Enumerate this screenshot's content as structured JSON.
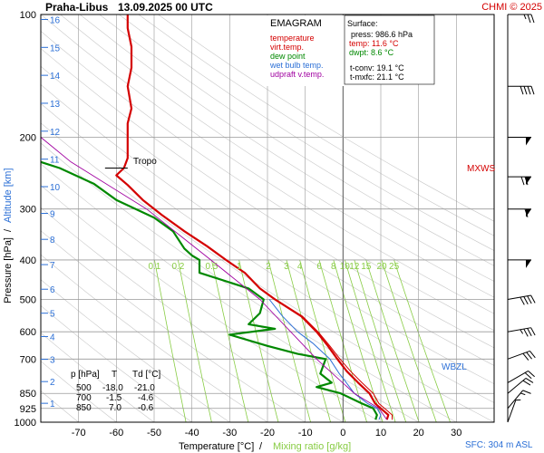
{
  "header": {
    "station": "Praha-Libus",
    "datetime": "13.09.2025 00 UTC",
    "credit": "CHMI © 2025"
  },
  "legend": {
    "title": "EMAGRAM",
    "items": [
      {
        "label": "temperature",
        "color": "#d40000"
      },
      {
        "label": "virt.temp.",
        "color": "#d40000"
      },
      {
        "label": "dew point",
        "color": "#008800"
      },
      {
        "label": "wet bulb temp.",
        "color": "#2b6fd6"
      },
      {
        "label": "udpraft v.temp.",
        "color": "#a000a0"
      }
    ]
  },
  "surface": {
    "title": "Surface:",
    "press": "press: 986.6 hPa",
    "temp": "temp: 11.6 °C",
    "dwpt": "dwpt: 8.6 °C",
    "tconv": "t-conv: 19.1 °C",
    "tmxfc": "t-mxfc: 21.1 °C"
  },
  "table": {
    "headers": [
      "p [hPa]",
      "T",
      "Td [°C]"
    ],
    "rows": [
      [
        "500",
        "-18.0",
        "-21.0"
      ],
      [
        "700",
        "-1.5",
        "-4.6"
      ],
      [
        "850",
        "7.0",
        "-0.6"
      ]
    ]
  },
  "axes": {
    "y_label_pressure": "Pressure [hPa]",
    "y_label_sep": "/",
    "y_label_alt": "Altitude [km]",
    "x_label_temp": "Temperature [°C]",
    "x_label_sep": "/",
    "x_label_mix": "Mixing ratio [g/kg]",
    "sfc_label": "SFC: 304 m ASL",
    "tropo_label": "Tropo",
    "mxws_label": "MXWS",
    "wbzl_label": "WBZL"
  },
  "colors": {
    "temperature": "#d40000",
    "dewpoint": "#008800",
    "wetbulb": "#2b6fd6",
    "updraft": "#a000a0",
    "mixing": "#88cc44",
    "altitude": "#2b6fd6",
    "grid": "#999999"
  },
  "chart_data": {
    "type": "line",
    "title": "EMAGRAM",
    "xlabel": "Temperature [°C] / Mixing ratio [g/kg]",
    "ylabel": "Pressure [hPa] / Altitude [km]",
    "xlim": [
      -80,
      40
    ],
    "ylim": [
      1000,
      100
    ],
    "y_scale": "log",
    "x_ticks": [
      -70,
      -60,
      -50,
      -40,
      -30,
      -20,
      -10,
      0,
      10,
      20,
      30
    ],
    "pressure_ticks": [
      100,
      200,
      300,
      400,
      500,
      600,
      700,
      850,
      925,
      1000
    ],
    "altitude_ticks_km": [
      1,
      2,
      3,
      4,
      5,
      6,
      7,
      8,
      9,
      10,
      11,
      12,
      13,
      14,
      15,
      16
    ],
    "mixing_ratio_labels": [
      "0.1",
      "0.2",
      "0.5",
      "1",
      "2",
      "3",
      "4",
      "6",
      "8",
      "10",
      "12",
      "15",
      "20",
      "25"
    ],
    "series": [
      {
        "name": "temperature",
        "points": [
          [
            11.6,
            986
          ],
          [
            12,
            960
          ],
          [
            10,
            925
          ],
          [
            8.5,
            900
          ],
          [
            7,
            850
          ],
          [
            4,
            800
          ],
          [
            1,
            750
          ],
          [
            -1.5,
            700
          ],
          [
            -4,
            650
          ],
          [
            -7,
            600
          ],
          [
            -11,
            550
          ],
          [
            -18,
            500
          ],
          [
            -22,
            470
          ],
          [
            -26,
            430
          ],
          [
            -31,
            400
          ],
          [
            -36,
            370
          ],
          [
            -42,
            340
          ],
          [
            -48,
            310
          ],
          [
            -53,
            285
          ],
          [
            -57,
            262
          ],
          [
            -60,
            248
          ],
          [
            -58,
            238
          ],
          [
            -57,
            225
          ],
          [
            -57,
            200
          ],
          [
            -57,
            185
          ],
          [
            -56,
            170
          ],
          [
            -57,
            150
          ],
          [
            -56,
            135
          ],
          [
            -56,
            120
          ],
          [
            -57,
            108
          ],
          [
            -57,
            100
          ]
        ]
      },
      {
        "name": "virt.temp.",
        "points": [
          [
            13,
            986
          ],
          [
            13,
            960
          ],
          [
            11,
            925
          ],
          [
            9.5,
            900
          ],
          [
            8,
            850
          ],
          [
            5,
            800
          ],
          [
            2,
            750
          ],
          [
            -0.8,
            700
          ],
          [
            -3.5,
            650
          ],
          [
            -6.6,
            600
          ],
          [
            -10.7,
            550
          ],
          [
            -17.8,
            500
          ],
          [
            -21.9,
            470
          ],
          [
            -25.9,
            430
          ],
          [
            -31,
            400
          ]
        ]
      },
      {
        "name": "dew point",
        "points": [
          [
            8.6,
            986
          ],
          [
            9,
            960
          ],
          [
            8,
            925
          ],
          [
            5,
            900
          ],
          [
            -0.6,
            850
          ],
          [
            -7,
            820
          ],
          [
            -3,
            800
          ],
          [
            -6,
            760
          ],
          [
            -4.6,
            700
          ],
          [
            -12,
            680
          ],
          [
            -20,
            650
          ],
          [
            -30,
            610
          ],
          [
            -18,
            590
          ],
          [
            -25,
            575
          ],
          [
            -22,
            540
          ],
          [
            -21,
            500
          ],
          [
            -25,
            470
          ],
          [
            -38,
            430
          ],
          [
            -38,
            400
          ],
          [
            -40,
            390
          ],
          [
            -42,
            375
          ],
          [
            -45,
            340
          ],
          [
            -50,
            315
          ],
          [
            -60,
            285
          ],
          [
            -66,
            260
          ],
          [
            -75,
            238
          ],
          [
            -80,
            230
          ]
        ]
      },
      {
        "name": "wet bulb temp.",
        "points": [
          [
            9.5,
            986
          ],
          [
            10,
            960
          ],
          [
            9,
            925
          ],
          [
            6.5,
            900
          ],
          [
            3,
            850
          ],
          [
            0,
            780
          ],
          [
            -1,
            760
          ],
          [
            -3.5,
            700
          ],
          [
            -8,
            640
          ],
          [
            -12,
            600
          ],
          [
            -16,
            550
          ],
          [
            -19.5,
            500
          ]
        ]
      },
      {
        "name": "udpraft v.temp.",
        "points": [
          [
            11.6,
            986
          ],
          [
            9.5,
            925
          ],
          [
            3,
            850
          ],
          [
            -7,
            700
          ],
          [
            -22,
            500
          ],
          [
            -35,
            400
          ],
          [
            -52,
            300
          ],
          [
            -72,
            230
          ],
          [
            -80,
            200
          ]
        ]
      }
    ],
    "annotations": [
      "Tropo",
      "MXWS",
      "WBZL"
    ],
    "grid": true
  },
  "wind_barbs": [
    {
      "p": 1000,
      "dir": 200,
      "spd": 5
    },
    {
      "p": 925,
      "dir": 220,
      "spd": 15
    },
    {
      "p": 850,
      "dir": 230,
      "spd": 20
    },
    {
      "p": 800,
      "dir": 240,
      "spd": 20
    },
    {
      "p": 700,
      "dir": 250,
      "spd": 30
    },
    {
      "p": 600,
      "dir": 260,
      "spd": 35
    },
    {
      "p": 500,
      "dir": 260,
      "spd": 40
    },
    {
      "p": 400,
      "dir": 270,
      "spd": 50
    },
    {
      "p": 300,
      "dir": 270,
      "spd": 60
    },
    {
      "p": 250,
      "dir": 270,
      "spd": 70
    },
    {
      "p": 200,
      "dir": 270,
      "spd": 50
    },
    {
      "p": 150,
      "dir": 270,
      "spd": 40
    },
    {
      "p": 100,
      "dir": 270,
      "spd": 25
    }
  ]
}
